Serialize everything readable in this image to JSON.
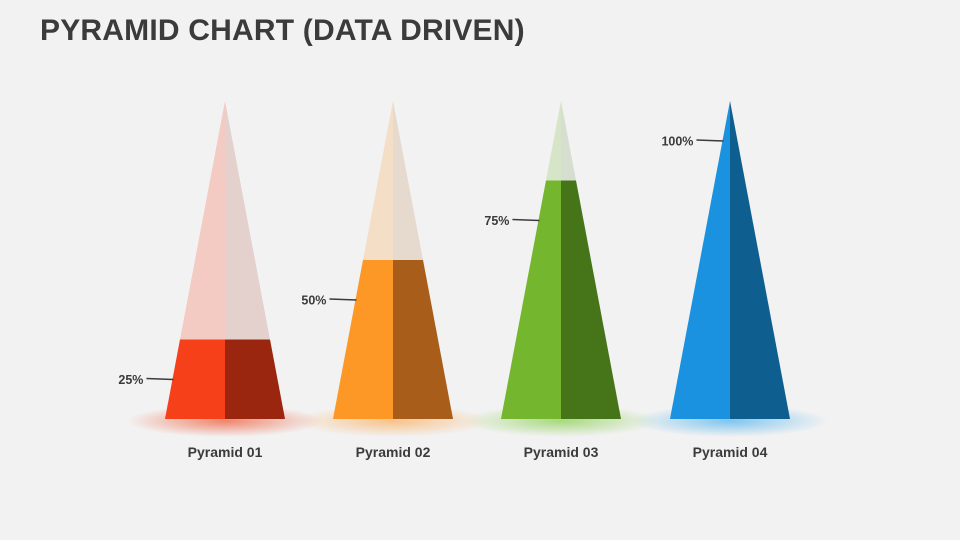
{
  "slide": {
    "title": "PYRAMID CHART (DATA DRIVEN)"
  },
  "chart_data": {
    "type": "pyramid",
    "title": "PYRAMID CHART (DATA DRIVEN)",
    "unit": "%",
    "ylim": [
      0,
      100
    ],
    "categories": [
      "Pyramid 01",
      "Pyramid 02",
      "Pyramid 03",
      "Pyramid 04"
    ],
    "values": [
      25,
      50,
      75,
      100
    ],
    "value_labels": [
      "25%",
      "50%",
      "75%",
      "100%"
    ],
    "colors": [
      {
        "light": "#f5401a",
        "dark": "#9b260f",
        "glow": "#f0603f"
      },
      {
        "light": "#fd9827",
        "dark": "#a85e1a",
        "glow": "#fbb266"
      },
      {
        "light": "#74b62e",
        "dark": "#467519",
        "glow": "#8fd15a"
      },
      {
        "light": "#1b92e0",
        "dark": "#0e5f8f",
        "glow": "#5ab6ee"
      }
    ],
    "legend": "none",
    "grid": false
  }
}
